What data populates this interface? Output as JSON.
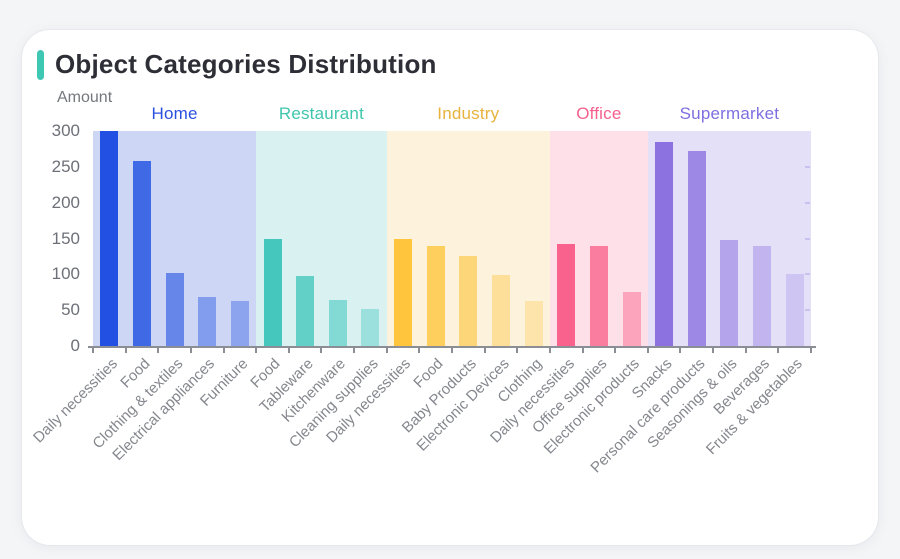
{
  "page": {
    "background": "#f3f5f7",
    "card_background": "#ffffff"
  },
  "header": {
    "title": "Object Categories Distribution",
    "accent_color": "#3ec8b4"
  },
  "chart_data": {
    "type": "bar",
    "title": "Object Categories Distribution",
    "ylabel": "Amount",
    "xlabel": "",
    "ylim": [
      0,
      300
    ],
    "yticks": [
      0,
      50,
      100,
      150,
      200,
      250,
      300
    ],
    "grid": false,
    "legend_position": "none",
    "axis_color": "#8b8e95",
    "y_tick_label_color": "#6e7079",
    "x_tick_label_color": "#85878e",
    "groups": [
      {
        "name": "Home",
        "label_color": "#2b50e0",
        "bar_color": "#2150e3",
        "band_color": "#cdd7f5",
        "alphas": [
          1,
          0.82,
          0.6,
          0.43,
          0.38
        ],
        "categories": [
          "Daily necessities",
          "Food",
          "Clothing & textiles",
          "Electrical appliances",
          "Furniture"
        ],
        "values": [
          300,
          258,
          102,
          68,
          63
        ]
      },
      {
        "name": "Restaurant",
        "label_color": "#40c6ad",
        "bar_color": "#45c7be",
        "band_color": "#d9f2f1",
        "alphas": [
          1,
          0.8,
          0.58,
          0.41
        ],
        "categories": [
          "Food",
          "Tableware",
          "Kitchenware",
          "Cleaning supplies"
        ],
        "values": [
          149,
          97,
          64,
          51
        ]
      },
      {
        "name": "Industry",
        "label_color": "#e8b23e",
        "bar_color": "#fec53d",
        "band_color": "#fdf2dc",
        "alphas": [
          1,
          0.8,
          0.62,
          0.42,
          0.3
        ],
        "categories": [
          "Daily necessities",
          "Food",
          "Baby Products",
          "Electronic Devices",
          "Clothing"
        ],
        "values": [
          150,
          139,
          126,
          99,
          63
        ]
      },
      {
        "name": "Office",
        "label_color": "#f5608e",
        "bar_color": "#f9628d",
        "band_color": "#fde0e8",
        "alphas": [
          1,
          0.79,
          0.48
        ],
        "categories": [
          "Daily necessities",
          "Office supplies",
          "Electronic products"
        ],
        "values": [
          142,
          139,
          75
        ]
      },
      {
        "name": "Supermarket",
        "label_color": "#7d6fe0",
        "bar_color": "#8b72e0",
        "band_color": "#e4e0f8",
        "alphas": [
          1,
          0.8,
          0.55,
          0.4,
          0.25
        ],
        "categories": [
          "Snacks",
          "Personal care products",
          "Seasonings & oils",
          "Beverages",
          "Fruits & vegetables"
        ],
        "values": [
          285,
          272,
          148,
          140,
          101
        ]
      }
    ]
  }
}
